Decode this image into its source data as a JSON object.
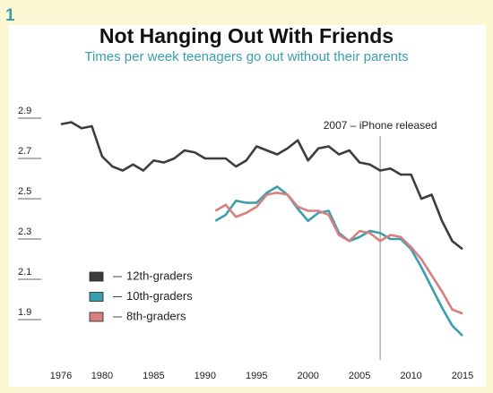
{
  "panel_label": "1",
  "chart_data": {
    "type": "line",
    "title": "Not Hanging Out With Friends",
    "subtitle": "Times per week teenagers go out without their parents",
    "x": [
      1976,
      1977,
      1978,
      1979,
      1980,
      1981,
      1982,
      1983,
      1984,
      1985,
      1986,
      1987,
      1988,
      1989,
      1990,
      1991,
      1992,
      1993,
      1994,
      1995,
      1996,
      1997,
      1998,
      1999,
      2000,
      2001,
      2002,
      2003,
      2004,
      2005,
      2006,
      2007,
      2008,
      2009,
      2010,
      2011,
      2012,
      2013,
      2014,
      2015
    ],
    "xlim": [
      1974,
      2017
    ],
    "xticks": [
      1976,
      1980,
      1985,
      1990,
      1995,
      2000,
      2005,
      2010,
      2015
    ],
    "ylim": [
      1.7,
      2.95
    ],
    "yticks": [
      1.9,
      2.1,
      2.3,
      2.5,
      2.7,
      2.9
    ],
    "legend": "lower left",
    "series": [
      {
        "name": "12th-graders",
        "color": "#3d3d3d",
        "values": [
          2.87,
          2.88,
          2.85,
          2.86,
          2.71,
          2.66,
          2.64,
          2.67,
          2.64,
          2.69,
          2.68,
          2.7,
          2.74,
          2.73,
          2.7,
          2.7,
          2.7,
          2.66,
          2.69,
          2.76,
          2.74,
          2.72,
          2.75,
          2.79,
          2.69,
          2.75,
          2.76,
          2.72,
          2.74,
          2.68,
          2.67,
          2.64,
          2.65,
          2.62,
          2.62,
          2.5,
          2.52,
          2.39,
          2.29,
          2.25
        ]
      },
      {
        "name": "10th-graders",
        "color": "#3a9fac",
        "values": [
          null,
          null,
          null,
          null,
          null,
          null,
          null,
          null,
          null,
          null,
          null,
          null,
          null,
          null,
          null,
          2.39,
          2.42,
          2.49,
          2.48,
          2.48,
          2.53,
          2.56,
          2.52,
          2.45,
          2.39,
          2.43,
          2.44,
          2.33,
          2.29,
          2.31,
          2.34,
          2.33,
          2.3,
          2.3,
          2.25,
          2.16,
          2.06,
          1.96,
          1.87,
          1.82
        ]
      },
      {
        "name": "8th-graders",
        "color": "#d87f80",
        "values": [
          null,
          null,
          null,
          null,
          null,
          null,
          null,
          null,
          null,
          null,
          null,
          null,
          null,
          null,
          null,
          2.44,
          2.47,
          2.41,
          2.43,
          2.46,
          2.52,
          2.53,
          2.52,
          2.46,
          2.44,
          2.44,
          2.42,
          2.32,
          2.29,
          2.34,
          2.33,
          2.29,
          2.32,
          2.31,
          2.26,
          2.2,
          2.12,
          2.04,
          1.95,
          1.93
        ]
      }
    ],
    "annotations": [
      {
        "text": "2007 – iPhone released",
        "x": 2007
      }
    ]
  }
}
